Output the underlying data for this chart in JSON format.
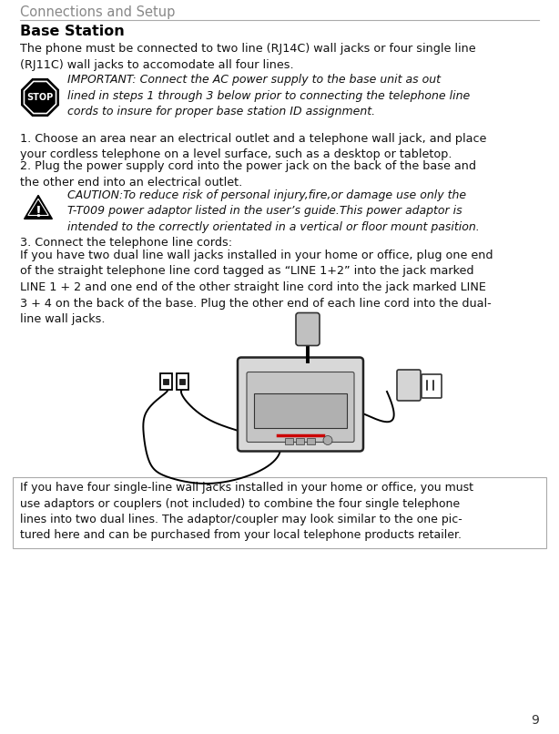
{
  "page_bg": "#ffffff",
  "section_title": "Connections and Setup",
  "subsection_title": "Base Station",
  "intro_text": "The phone must be connected to two line (RJ14C) wall jacks or four single line\n(RJ11C) wall jacks to accomodate all four lines.",
  "important_text": "IMPORTANT: Connect the AC power supply to the base unit as out\nlined in steps 1 through 3 below prior to connecting the telephone line\ncords to insure for proper base station ID assignment.",
  "step1_text": "1. Choose an area near an electrical outlet and a telephone wall jack, and place\nyour cordless telephone on a level surface, such as a desktop or tabletop.",
  "step2_text": "2. Plug the power supply cord into the power jack on the back of the base and\nthe other end into an electrical outlet.",
  "caution_text": "CAUTION:To reduce risk of personal injury,fire,or damage use only the\nT-T009 power adaptor listed in the user’s guide.This power adaptor is\nintended to the correctly orientated in a vertical or floor mount pasition.",
  "step3_header": "3. Connect the telephone line cords:",
  "step3_text": "If you have two dual line wall jacks installed in your home or office, plug one end\nof the straight telephone line cord tagged as “LINE 1+2” into the jack marked\nLINE 1 + 2 and one end of the other straight line cord into the jack marked LINE\n3 + 4 on the back of the base. Plug the other end of each line cord into the dual-\nline wall jacks.",
  "box_text": "If you have four single-line wall jacks installed in your home or office, you must\nuse adaptors or couplers (not included) to combine the four single telephone\nlines into two dual lines. The adaptor/coupler may look similar to the one pic-\ntured here and can be purchased from your local telephone products retailer.",
  "page_num": "9",
  "section_title_color": "#888888",
  "body_color": "#111111",
  "divider_color": "#aaaaaa"
}
